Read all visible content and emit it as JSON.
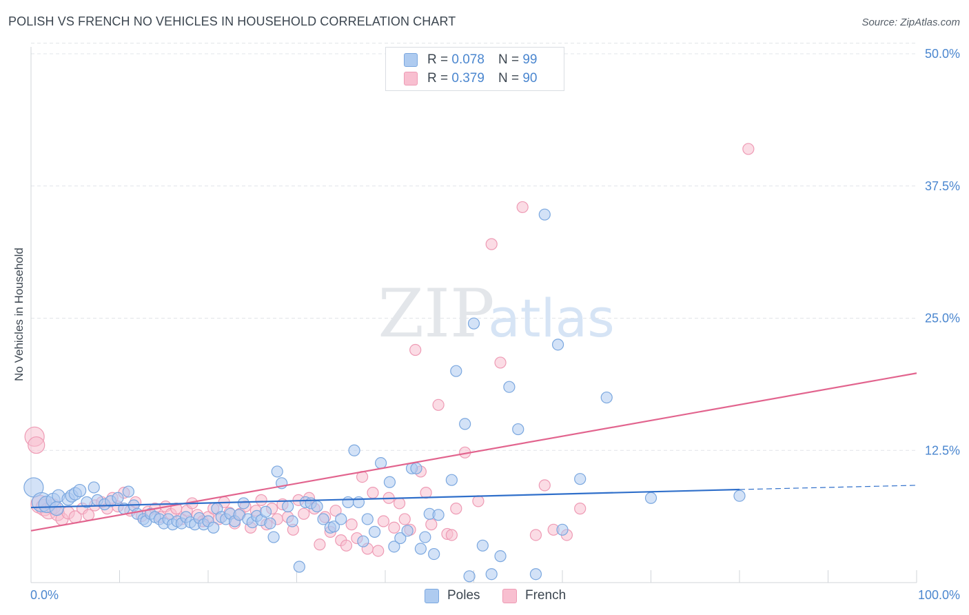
{
  "header": {
    "title": "POLISH VS FRENCH NO VEHICLES IN HOUSEHOLD CORRELATION CHART",
    "source": "Source: ZipAtlas.com"
  },
  "watermark": {
    "zip": "ZIP",
    "atlas": "atlas"
  },
  "legend": {
    "rows": [
      {
        "r_label": "R = ",
        "r_value": "0.078",
        "n_label": "N = ",
        "n_value": "99",
        "color": "#aecbf0"
      },
      {
        "r_label": "R = ",
        "r_value": "0.379",
        "n_label": "N = ",
        "n_value": "90",
        "color": "#f8bfd0"
      }
    ]
  },
  "bottom_legend": {
    "poles": "Poles",
    "french": "French"
  },
  "colors": {
    "poles_fill": "#aecbf0",
    "poles_stroke": "#7aa7df",
    "poles_line": "#2f6fca",
    "french_fill": "#f8bfd0",
    "french_stroke": "#ee9ab4",
    "french_line": "#e2648e",
    "axis_label": "#4a86cf",
    "grid": "#e1e4e8"
  },
  "chart_data": {
    "type": "scatter",
    "title": "POLISH VS FRENCH NO VEHICLES IN HOUSEHOLD CORRELATION CHART",
    "xlabel": "",
    "ylabel": "No Vehicles in Household",
    "xlim": [
      0,
      100
    ],
    "ylim": [
      0,
      50
    ],
    "x_tick_labels": [
      "0.0%",
      "100.0%"
    ],
    "y_ticks": [
      12.5,
      25.0,
      37.5,
      50.0
    ],
    "y_tick_labels": [
      "12.5%",
      "25.0%",
      "37.5%",
      "50.0%"
    ],
    "grid": true,
    "legend_position": "top-center",
    "series": [
      {
        "name": "Poles",
        "r": 0.078,
        "n": 99,
        "trend": {
          "x": [
            0,
            80
          ],
          "y": [
            7.1,
            8.8
          ],
          "dashed_extension": {
            "x": [
              80,
              100
            ],
            "y": [
              8.8,
              9.2
            ]
          }
        },
        "points": [
          [
            0.3,
            9.0,
            14
          ],
          [
            1.2,
            7.6,
            14
          ],
          [
            1.8,
            7.4,
            12
          ],
          [
            2.5,
            7.8,
            10
          ],
          [
            2.9,
            7.0,
            10
          ],
          [
            3.1,
            8.2,
            9
          ],
          [
            4.2,
            7.9,
            9
          ],
          [
            4.6,
            8.2,
            9
          ],
          [
            5.0,
            8.4,
            9
          ],
          [
            5.5,
            8.7,
            9
          ],
          [
            6.3,
            7.6,
            8
          ],
          [
            7.1,
            9.0,
            8
          ],
          [
            7.5,
            7.8,
            8
          ],
          [
            8.3,
            7.4,
            8
          ],
          [
            9.0,
            7.7,
            8
          ],
          [
            9.8,
            8.0,
            8
          ],
          [
            10.5,
            7.0,
            8
          ],
          [
            11.0,
            8.6,
            8
          ],
          [
            11.6,
            7.3,
            8
          ],
          [
            12.0,
            6.5,
            8
          ],
          [
            12.7,
            6.0,
            8
          ],
          [
            13.0,
            5.8,
            8
          ],
          [
            13.5,
            6.5,
            8
          ],
          [
            14.0,
            6.2,
            8
          ],
          [
            14.5,
            6.0,
            8
          ],
          [
            15.0,
            5.6,
            8
          ],
          [
            15.5,
            6.0,
            8
          ],
          [
            16.0,
            5.5,
            8
          ],
          [
            16.5,
            5.8,
            8
          ],
          [
            17.0,
            5.6,
            8
          ],
          [
            17.5,
            6.2,
            8
          ],
          [
            18.0,
            5.7,
            8
          ],
          [
            18.5,
            5.5,
            8
          ],
          [
            19.0,
            6.1,
            8
          ],
          [
            19.5,
            5.5,
            8
          ],
          [
            20.0,
            5.8,
            8
          ],
          [
            20.6,
            5.2,
            8
          ],
          [
            21.0,
            7.0,
            8
          ],
          [
            21.5,
            6.2,
            8
          ],
          [
            22.0,
            6.0,
            8
          ],
          [
            22.5,
            6.5,
            8
          ],
          [
            23.0,
            5.8,
            8
          ],
          [
            23.5,
            6.4,
            8
          ],
          [
            24.0,
            7.5,
            8
          ],
          [
            24.5,
            6.0,
            8
          ],
          [
            25.0,
            5.7,
            8
          ],
          [
            25.5,
            6.3,
            8
          ],
          [
            26.0,
            5.9,
            8
          ],
          [
            26.5,
            6.7,
            8
          ],
          [
            27.0,
            5.6,
            8
          ],
          [
            27.4,
            4.3,
            8
          ],
          [
            27.8,
            10.5,
            8
          ],
          [
            28.3,
            9.4,
            8
          ],
          [
            29.0,
            7.2,
            8
          ],
          [
            29.5,
            5.8,
            8
          ],
          [
            30.3,
            1.5,
            8
          ],
          [
            31.0,
            7.6,
            8
          ],
          [
            31.6,
            7.5,
            8
          ],
          [
            32.3,
            7.2,
            8
          ],
          [
            33.0,
            6.0,
            8
          ],
          [
            33.8,
            5.2,
            8
          ],
          [
            34.2,
            5.3,
            8
          ],
          [
            35.0,
            6.0,
            8
          ],
          [
            35.8,
            7.6,
            8
          ],
          [
            36.5,
            12.5,
            8
          ],
          [
            37.0,
            7.6,
            8
          ],
          [
            37.5,
            3.9,
            8
          ],
          [
            38.0,
            6.0,
            8
          ],
          [
            38.8,
            4.8,
            8
          ],
          [
            39.5,
            11.3,
            8
          ],
          [
            40.5,
            9.5,
            8
          ],
          [
            41.0,
            3.4,
            8
          ],
          [
            41.7,
            4.2,
            8
          ],
          [
            42.5,
            4.9,
            8
          ],
          [
            43.0,
            10.8,
            8
          ],
          [
            43.5,
            10.8,
            8
          ],
          [
            44.0,
            3.2,
            8
          ],
          [
            44.5,
            4.3,
            8
          ],
          [
            45.0,
            6.5,
            8
          ],
          [
            45.5,
            2.7,
            8
          ],
          [
            46.0,
            6.4,
            8
          ],
          [
            47.5,
            9.7,
            8
          ],
          [
            48.0,
            20.0,
            8
          ],
          [
            49.0,
            15.0,
            8
          ],
          [
            49.5,
            0.6,
            8
          ],
          [
            50.0,
            24.5,
            8
          ],
          [
            51.0,
            3.5,
            8
          ],
          [
            52.0,
            0.8,
            8
          ],
          [
            53.0,
            2.5,
            8
          ],
          [
            54.0,
            18.5,
            8
          ],
          [
            55.0,
            14.5,
            8
          ],
          [
            57.0,
            0.8,
            8
          ],
          [
            58.0,
            34.8,
            8
          ],
          [
            59.5,
            22.5,
            8
          ],
          [
            60.0,
            5.0,
            8
          ],
          [
            62.0,
            9.8,
            8
          ],
          [
            65.0,
            17.5,
            8
          ],
          [
            70.0,
            8.0,
            8
          ],
          [
            80.0,
            8.2,
            8
          ]
        ]
      },
      {
        "name": "French",
        "r": 0.379,
        "n": 90,
        "trend": {
          "x": [
            0,
            100
          ],
          "y": [
            4.9,
            19.8
          ]
        },
        "points": [
          [
            0.4,
            13.8,
            14
          ],
          [
            0.6,
            13.0,
            12
          ],
          [
            1.0,
            7.4,
            13
          ],
          [
            1.5,
            7.1,
            12
          ],
          [
            2.0,
            6.8,
            12
          ],
          [
            2.5,
            7.2,
            11
          ],
          [
            3.0,
            6.5,
            10
          ],
          [
            3.5,
            6.0,
            9
          ],
          [
            4.2,
            6.6,
            9
          ],
          [
            5.0,
            6.2,
            9
          ],
          [
            5.8,
            7.0,
            8
          ],
          [
            6.5,
            6.4,
            8
          ],
          [
            7.2,
            7.3,
            8
          ],
          [
            8.0,
            7.6,
            8
          ],
          [
            8.6,
            7.0,
            8
          ],
          [
            9.2,
            8.0,
            8
          ],
          [
            9.8,
            7.2,
            8
          ],
          [
            10.5,
            8.5,
            8
          ],
          [
            11.2,
            6.8,
            8
          ],
          [
            11.8,
            7.6,
            8
          ],
          [
            12.5,
            6.3,
            8
          ],
          [
            13.2,
            6.7,
            8
          ],
          [
            14.0,
            7.0,
            8
          ],
          [
            14.6,
            6.2,
            8
          ],
          [
            15.2,
            7.2,
            8
          ],
          [
            15.8,
            6.5,
            8
          ],
          [
            16.4,
            7.0,
            8
          ],
          [
            17.0,
            6.0,
            8
          ],
          [
            17.6,
            6.8,
            8
          ],
          [
            18.2,
            7.5,
            8
          ],
          [
            18.8,
            6.4,
            8
          ],
          [
            19.4,
            5.8,
            8
          ],
          [
            20.0,
            6.2,
            8
          ],
          [
            20.6,
            7.0,
            8
          ],
          [
            21.2,
            6.0,
            8
          ],
          [
            21.8,
            7.6,
            8
          ],
          [
            22.4,
            6.6,
            8
          ],
          [
            23.0,
            5.6,
            8
          ],
          [
            23.6,
            6.5,
            8
          ],
          [
            24.2,
            7.2,
            8
          ],
          [
            24.8,
            5.2,
            8
          ],
          [
            25.4,
            6.8,
            8
          ],
          [
            26.0,
            7.8,
            8
          ],
          [
            26.6,
            5.5,
            8
          ],
          [
            27.2,
            7.0,
            8
          ],
          [
            27.8,
            6.0,
            8
          ],
          [
            28.4,
            7.4,
            8
          ],
          [
            29.0,
            6.2,
            8
          ],
          [
            29.6,
            5.0,
            8
          ],
          [
            30.2,
            7.8,
            8
          ],
          [
            30.8,
            6.5,
            8
          ],
          [
            31.4,
            8.0,
            8
          ],
          [
            32.0,
            7.0,
            8
          ],
          [
            32.6,
            3.6,
            8
          ],
          [
            33.2,
            6.2,
            8
          ],
          [
            33.8,
            4.8,
            8
          ],
          [
            34.4,
            6.8,
            8
          ],
          [
            35.0,
            4.0,
            8
          ],
          [
            35.6,
            3.5,
            8
          ],
          [
            36.2,
            5.5,
            8
          ],
          [
            36.8,
            4.2,
            8
          ],
          [
            37.4,
            10.0,
            8
          ],
          [
            38.0,
            3.2,
            8
          ],
          [
            38.6,
            8.5,
            8
          ],
          [
            39.2,
            3.0,
            8
          ],
          [
            39.8,
            5.8,
            8
          ],
          [
            40.4,
            8.0,
            8
          ],
          [
            41.0,
            5.2,
            8
          ],
          [
            41.6,
            7.5,
            8
          ],
          [
            42.2,
            6.0,
            8
          ],
          [
            42.8,
            5.0,
            8
          ],
          [
            43.4,
            22.0,
            8
          ],
          [
            44.0,
            10.5,
            8
          ],
          [
            44.6,
            8.5,
            8
          ],
          [
            45.2,
            5.5,
            8
          ],
          [
            46.0,
            16.8,
            8
          ],
          [
            47.0,
            4.6,
            8
          ],
          [
            48.0,
            7.0,
            8
          ],
          [
            49.0,
            12.3,
            8
          ],
          [
            50.5,
            7.7,
            8
          ],
          [
            52.0,
            32.0,
            8
          ],
          [
            53.0,
            20.8,
            8
          ],
          [
            55.5,
            35.5,
            8
          ],
          [
            57.0,
            4.5,
            8
          ],
          [
            58.0,
            9.2,
            8
          ],
          [
            59.0,
            5.0,
            8
          ],
          [
            62.0,
            7.0,
            8
          ],
          [
            81.0,
            41.0,
            8
          ],
          [
            60.5,
            4.5,
            8
          ],
          [
            47.5,
            4.5,
            8
          ]
        ]
      }
    ]
  }
}
